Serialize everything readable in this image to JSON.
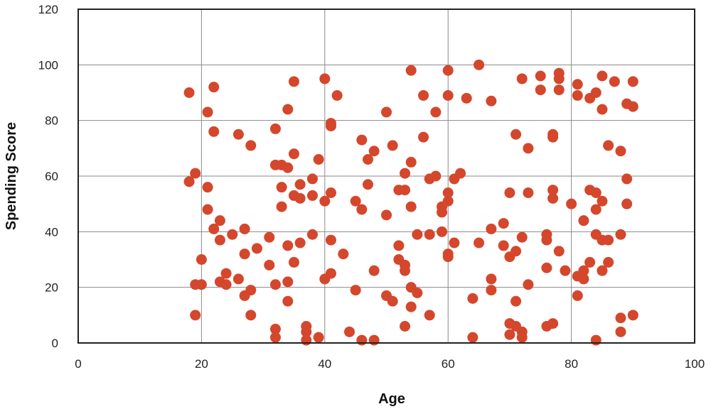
{
  "chart_data": {
    "type": "scatter",
    "title": "",
    "xlabel": "Age",
    "ylabel": "Spending Score",
    "xlim": [
      0,
      100
    ],
    "ylim": [
      0,
      120
    ],
    "xticks": [
      0,
      20,
      40,
      60,
      80,
      100
    ],
    "yticks": [
      0,
      20,
      40,
      60,
      80,
      100,
      120
    ],
    "grid": true,
    "marker_color": "#d4472c",
    "series": [
      {
        "points": [
          [
            18,
            90
          ],
          [
            18,
            58
          ],
          [
            19,
            61
          ],
          [
            19,
            21
          ],
          [
            19,
            10
          ],
          [
            20,
            30
          ],
          [
            20,
            21
          ],
          [
            21,
            83
          ],
          [
            21,
            56
          ],
          [
            21,
            48
          ],
          [
            22,
            92
          ],
          [
            22,
            76
          ],
          [
            22,
            41
          ],
          [
            23,
            44
          ],
          [
            23,
            37
          ],
          [
            23,
            22
          ],
          [
            24,
            25
          ],
          [
            24,
            21
          ],
          [
            25,
            39
          ],
          [
            26,
            75
          ],
          [
            26,
            23
          ],
          [
            27,
            41
          ],
          [
            27,
            32
          ],
          [
            27,
            17
          ],
          [
            28,
            71
          ],
          [
            28,
            19
          ],
          [
            28,
            10
          ],
          [
            29,
            34
          ],
          [
            31,
            38
          ],
          [
            31,
            28
          ],
          [
            32,
            77
          ],
          [
            32,
            64
          ],
          [
            32,
            21
          ],
          [
            32,
            5
          ],
          [
            32,
            2
          ],
          [
            33,
            64
          ],
          [
            33,
            56
          ],
          [
            33,
            49
          ],
          [
            34,
            84
          ],
          [
            34,
            63
          ],
          [
            34,
            35
          ],
          [
            34,
            22
          ],
          [
            34,
            15
          ],
          [
            35,
            94
          ],
          [
            35,
            68
          ],
          [
            35,
            53
          ],
          [
            35,
            29
          ],
          [
            36,
            57
          ],
          [
            36,
            52
          ],
          [
            36,
            36
          ],
          [
            37,
            6
          ],
          [
            37,
            4
          ],
          [
            37,
            1
          ],
          [
            38,
            59
          ],
          [
            38,
            53
          ],
          [
            38,
            39
          ],
          [
            39,
            66
          ],
          [
            39,
            2
          ],
          [
            40,
            95
          ],
          [
            40,
            51
          ],
          [
            40,
            23
          ],
          [
            41,
            79
          ],
          [
            41,
            78
          ],
          [
            41,
            54
          ],
          [
            41,
            37
          ],
          [
            41,
            25
          ],
          [
            42,
            89
          ],
          [
            43,
            32
          ],
          [
            44,
            4
          ],
          [
            45,
            51
          ],
          [
            45,
            19
          ],
          [
            46,
            73
          ],
          [
            46,
            48
          ],
          [
            46,
            1
          ],
          [
            47,
            66
          ],
          [
            47,
            57
          ],
          [
            48,
            69
          ],
          [
            48,
            26
          ],
          [
            48,
            1
          ],
          [
            50,
            83
          ],
          [
            50,
            46
          ],
          [
            50,
            17
          ],
          [
            51,
            71
          ],
          [
            51,
            15
          ],
          [
            52,
            55
          ],
          [
            52,
            35
          ],
          [
            52,
            30
          ],
          [
            53,
            61
          ],
          [
            53,
            55
          ],
          [
            53,
            28
          ],
          [
            53,
            26
          ],
          [
            53,
            6
          ],
          [
            54,
            98
          ],
          [
            54,
            65
          ],
          [
            54,
            49
          ],
          [
            54,
            20
          ],
          [
            54,
            13
          ],
          [
            55,
            39
          ],
          [
            55,
            18
          ],
          [
            56,
            89
          ],
          [
            56,
            74
          ],
          [
            57,
            59
          ],
          [
            57,
            39
          ],
          [
            57,
            10
          ],
          [
            58,
            83
          ],
          [
            58,
            60
          ],
          [
            59,
            49
          ],
          [
            59,
            47
          ],
          [
            59,
            40
          ],
          [
            60,
            98
          ],
          [
            60,
            89
          ],
          [
            60,
            54
          ],
          [
            60,
            51
          ],
          [
            60,
            32
          ],
          [
            60,
            31
          ],
          [
            61,
            59
          ],
          [
            61,
            36
          ],
          [
            62,
            61
          ],
          [
            63,
            88
          ],
          [
            64,
            16
          ],
          [
            64,
            2
          ],
          [
            65,
            100
          ],
          [
            65,
            36
          ],
          [
            67,
            87
          ],
          [
            67,
            41
          ],
          [
            67,
            23
          ],
          [
            67,
            19
          ],
          [
            69,
            43
          ],
          [
            69,
            35
          ],
          [
            70,
            54
          ],
          [
            70,
            31
          ],
          [
            70,
            7
          ],
          [
            70,
            3
          ],
          [
            71,
            75
          ],
          [
            71,
            33
          ],
          [
            71,
            15
          ],
          [
            71,
            6
          ],
          [
            72,
            95
          ],
          [
            72,
            38
          ],
          [
            72,
            4
          ],
          [
            72,
            2
          ],
          [
            73,
            70
          ],
          [
            73,
            54
          ],
          [
            73,
            21
          ],
          [
            75,
            96
          ],
          [
            75,
            91
          ],
          [
            76,
            39
          ],
          [
            76,
            37
          ],
          [
            76,
            27
          ],
          [
            76,
            6
          ],
          [
            77,
            75
          ],
          [
            77,
            74
          ],
          [
            77,
            55
          ],
          [
            77,
            52
          ],
          [
            77,
            7
          ],
          [
            78,
            97
          ],
          [
            78,
            95
          ],
          [
            78,
            91
          ],
          [
            78,
            33
          ],
          [
            79,
            26
          ],
          [
            80,
            50
          ],
          [
            81,
            93
          ],
          [
            81,
            89
          ],
          [
            81,
            24
          ],
          [
            81,
            17
          ],
          [
            82,
            44
          ],
          [
            82,
            26
          ],
          [
            82,
            23
          ],
          [
            83,
            88
          ],
          [
            83,
            55
          ],
          [
            83,
            29
          ],
          [
            84,
            90
          ],
          [
            84,
            54
          ],
          [
            84,
            48
          ],
          [
            84,
            39
          ],
          [
            84,
            1
          ],
          [
            85,
            96
          ],
          [
            85,
            84
          ],
          [
            85,
            51
          ],
          [
            85,
            37
          ],
          [
            85,
            26
          ],
          [
            86,
            71
          ],
          [
            86,
            37
          ],
          [
            86,
            29
          ],
          [
            87,
            94
          ],
          [
            88,
            69
          ],
          [
            88,
            39
          ],
          [
            88,
            9
          ],
          [
            88,
            4
          ],
          [
            89,
            86
          ],
          [
            89,
            59
          ],
          [
            89,
            50
          ],
          [
            90,
            94
          ],
          [
            90,
            85
          ],
          [
            90,
            10
          ]
        ]
      }
    ]
  }
}
